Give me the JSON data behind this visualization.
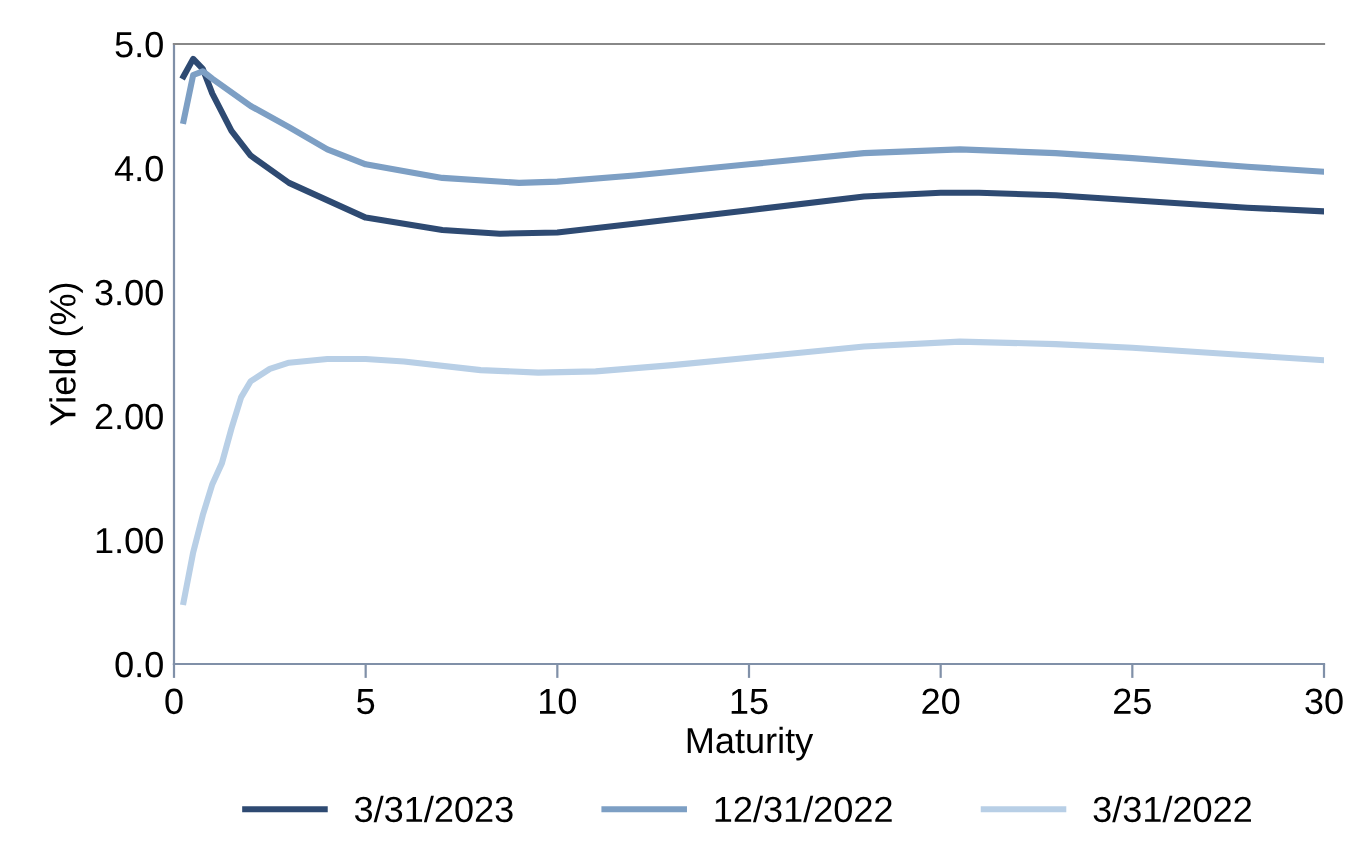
{
  "chart_data": {
    "type": "line",
    "xlabel": "Maturity",
    "ylabel": "Yield (%)",
    "xlim": [
      0,
      30
    ],
    "ylim": [
      0,
      5
    ],
    "xticks": [
      0,
      5,
      10,
      15,
      20,
      25,
      30
    ],
    "yticks": [
      {
        "value": 0,
        "label": "0.0"
      },
      {
        "value": 1,
        "label": "1.00"
      },
      {
        "value": 2,
        "label": "2.00"
      },
      {
        "value": 3,
        "label": "3.00"
      },
      {
        "value": 4,
        "label": "4.0"
      },
      {
        "value": 5,
        "label": "5.0"
      }
    ],
    "grid": false,
    "legend": "bottom",
    "marker": "none",
    "line_style": "solid",
    "series": [
      {
        "name": "3/31/2023",
        "color": "#2e4a72",
        "x": [
          0.25,
          0.5,
          0.75,
          1,
          1.5,
          2,
          3,
          5,
          7,
          8.5,
          10,
          12,
          15,
          18,
          20,
          21,
          23,
          25,
          28,
          30
        ],
        "values": [
          4.74,
          4.88,
          4.8,
          4.6,
          4.3,
          4.1,
          3.88,
          3.6,
          3.5,
          3.47,
          3.48,
          3.55,
          3.66,
          3.77,
          3.8,
          3.8,
          3.78,
          3.74,
          3.68,
          3.65
        ]
      },
      {
        "name": "12/31/2022",
        "color": "#7d9fc4",
        "x": [
          0.25,
          0.5,
          0.75,
          1,
          2,
          3,
          4,
          5,
          7,
          9,
          10,
          12,
          15,
          18,
          20.5,
          23,
          25,
          28,
          30
        ],
        "values": [
          4.38,
          4.75,
          4.78,
          4.72,
          4.5,
          4.33,
          4.15,
          4.03,
          3.92,
          3.88,
          3.89,
          3.94,
          4.03,
          4.12,
          4.15,
          4.12,
          4.08,
          4.01,
          3.97
        ]
      },
      {
        "name": "3/31/2022",
        "color": "#b8cfe6",
        "x": [
          0.25,
          0.5,
          0.75,
          1,
          1.25,
          1.5,
          1.75,
          2,
          2.5,
          3,
          4,
          5,
          6,
          8,
          9.5,
          11,
          13,
          15,
          18,
          20.5,
          23,
          25,
          28,
          30
        ],
        "values": [
          0.5,
          0.9,
          1.2,
          1.45,
          1.62,
          1.9,
          2.15,
          2.28,
          2.38,
          2.43,
          2.46,
          2.46,
          2.44,
          2.37,
          2.35,
          2.36,
          2.41,
          2.47,
          2.56,
          2.6,
          2.58,
          2.55,
          2.49,
          2.45
        ]
      }
    ]
  }
}
